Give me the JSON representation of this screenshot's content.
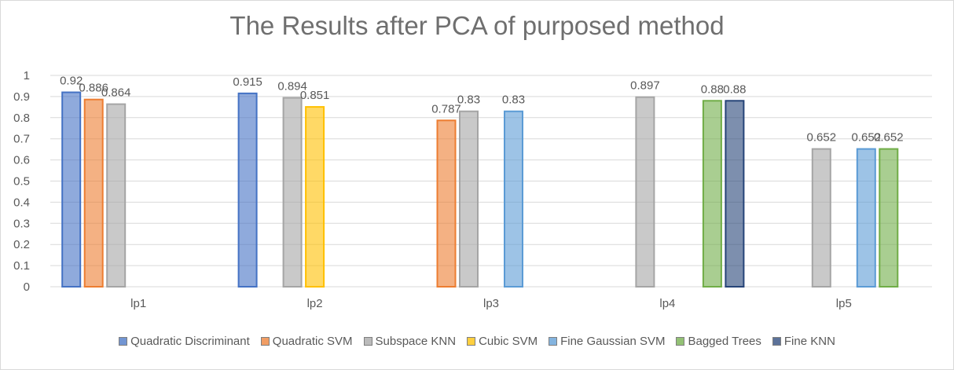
{
  "chart_data": {
    "type": "bar",
    "title": "The Results after PCA of purposed method",
    "categories": [
      "lp1",
      "lp2",
      "lp3",
      "lp4",
      "lp5"
    ],
    "series": [
      {
        "name": "Quadratic Discriminant",
        "color": "#4472c4",
        "values": [
          0.92,
          0.915,
          null,
          null,
          null
        ]
      },
      {
        "name": "Quadratic SVM",
        "color": "#ed7d31",
        "values": [
          0.886,
          null,
          0.787,
          null,
          null
        ]
      },
      {
        "name": "Subspace KNN",
        "color": "#a5a5a5",
        "values": [
          0.864,
          0.894,
          0.83,
          0.897,
          0.652
        ]
      },
      {
        "name": "Cubic SVM",
        "color": "#ffc000",
        "values": [
          null,
          0.851,
          null,
          null,
          null
        ]
      },
      {
        "name": "Fine Gaussian SVM",
        "color": "#5b9bd5",
        "values": [
          null,
          null,
          0.83,
          null,
          0.652
        ]
      },
      {
        "name": "Bagged Trees",
        "color": "#70ad47",
        "values": [
          null,
          null,
          null,
          0.88,
          0.652
        ]
      },
      {
        "name": "Fine KNN",
        "color": "#264478",
        "values": [
          null,
          null,
          null,
          0.88,
          null
        ]
      }
    ],
    "data_labels": [
      [
        "0.92",
        "0.886",
        "0.864"
      ],
      [
        "0.915",
        "0.894",
        "0.851"
      ],
      [
        "0.787",
        "0.83",
        "0.83"
      ],
      [
        "0.897",
        "0.88",
        "0.88"
      ],
      [
        "0.652",
        "0.652",
        "0.652"
      ]
    ],
    "y_ticks": [
      "0",
      "0.1",
      "0.2",
      "0.3",
      "0.4",
      "0.5",
      "0.6",
      "0.7",
      "0.8",
      "0.9",
      "1"
    ],
    "xlabel": "",
    "ylabel": "",
    "ylim": [
      0,
      1
    ],
    "grid": true,
    "legend_position": "bottom"
  }
}
